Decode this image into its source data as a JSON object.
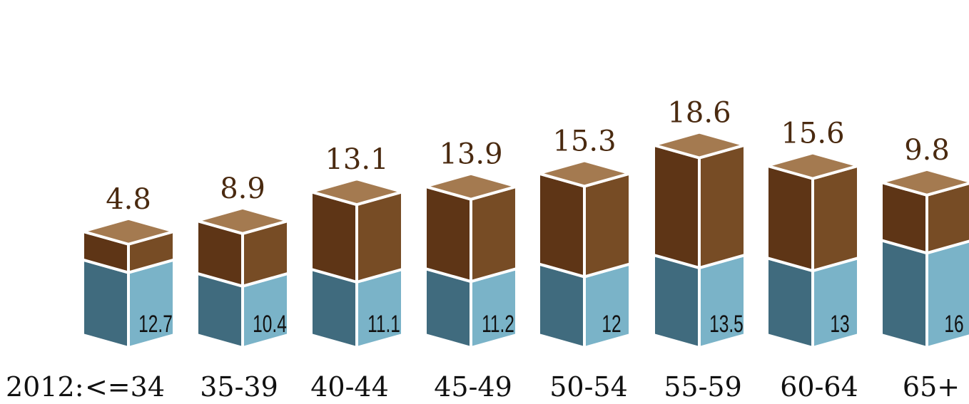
{
  "chart_data": {
    "type": "bar",
    "stacked": true,
    "style": "3d-isometric-columns",
    "category_prefix": "2012:",
    "categories": [
      "<=34",
      "35-39",
      "40-44",
      "45-49",
      "50-54",
      "55-59",
      "60-64",
      "65+"
    ],
    "series": [
      {
        "values": [
          12.7,
          10.4,
          11.1,
          11.2,
          12,
          13.5,
          13,
          16
        ]
      },
      {
        "values": [
          4.8,
          8.9,
          13.1,
          13.9,
          15.3,
          18.6,
          15.6,
          9.8
        ]
      }
    ],
    "labels": {
      "bottom": [
        "12.7",
        "10.4",
        "11.1",
        "11.2",
        "12",
        "13.5",
        "13",
        "16"
      ],
      "top": [
        "4.8",
        "8.9",
        "13.1",
        "13.9",
        "15.3",
        "18.6",
        "15.6",
        "9.8"
      ]
    },
    "title": "",
    "xlabel": "",
    "ylabel": "",
    "grid": false,
    "legend": "none",
    "colors": {
      "bottom_front_left": "#406b7e",
      "bottom_front_right": "#7ab3c8",
      "top_front_left": "#5e3516",
      "top_front_right": "#774c25",
      "top_face": "#a47a50",
      "top_label_text": "#4a2a10",
      "inner_label_text": "#111111",
      "category_text": "#111111",
      "edge": "#ffffff"
    }
  }
}
